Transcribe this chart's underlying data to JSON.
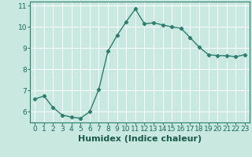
{
  "x": [
    0,
    1,
    2,
    3,
    4,
    5,
    6,
    7,
    8,
    9,
    10,
    11,
    12,
    13,
    14,
    15,
    16,
    17,
    18,
    19,
    20,
    21,
    22,
    23
  ],
  "y": [
    6.6,
    6.75,
    6.2,
    5.85,
    5.75,
    5.7,
    6.0,
    7.05,
    8.85,
    9.6,
    10.25,
    10.85,
    10.15,
    10.2,
    10.1,
    10.0,
    9.95,
    9.5,
    9.05,
    8.7,
    8.65,
    8.65,
    8.6,
    8.7
  ],
  "line_color": "#2e7d6e",
  "marker": "D",
  "marker_size": 2.2,
  "bg_color": "#c8e8e0",
  "grid_color": "#ffffff",
  "xlabel": "Humidex (Indice chaleur)",
  "xlabel_fontsize": 8,
  "ylim": [
    5.5,
    11.2
  ],
  "xlim": [
    -0.5,
    23.5
  ],
  "yticks": [
    6,
    7,
    8,
    9,
    10,
    11
  ],
  "xticks": [
    0,
    1,
    2,
    3,
    4,
    5,
    6,
    7,
    8,
    9,
    10,
    11,
    12,
    13,
    14,
    15,
    16,
    17,
    18,
    19,
    20,
    21,
    22,
    23
  ],
  "tick_fontsize": 6.5,
  "line_width": 1.0
}
